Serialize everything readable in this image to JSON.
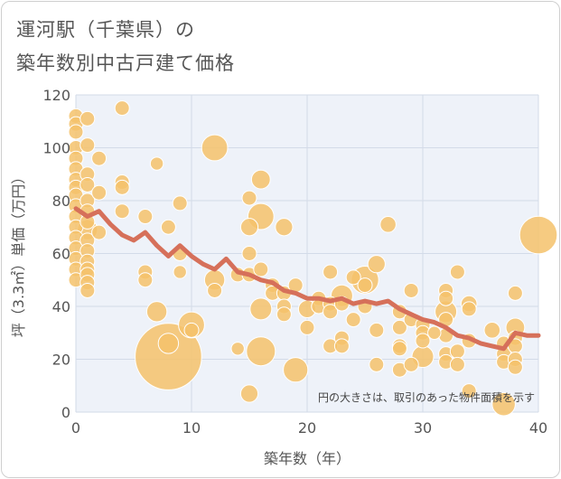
{
  "title_line1": "運河駅（千葉県）の",
  "title_line2": "築年数別中古戸建て価格",
  "note": "円の大きさは、取引のあった物件面積を示す",
  "colors": {
    "bubble": "#f5c26b",
    "bubble_stroke": "#ffffff",
    "line": "#d6705a",
    "plot_bg": "#eef2f9",
    "grid": "#d3dbe8"
  },
  "chart_data": {
    "type": "scatter",
    "xlabel": "築年数（年）",
    "ylabel": "坪（3.3㎡）単価（万円）",
    "xlim": [
      0,
      40
    ],
    "ylim": [
      0,
      120
    ],
    "x_ticks": [
      0,
      10,
      20,
      30,
      40
    ],
    "y_ticks": [
      0,
      20,
      40,
      60,
      80,
      100,
      120
    ],
    "grid": true,
    "bubbles": [
      {
        "x": 0,
        "y": 112,
        "s": 1.0
      },
      {
        "x": 0,
        "y": 109,
        "s": 1.0
      },
      {
        "x": 0,
        "y": 106,
        "s": 1.0
      },
      {
        "x": 0,
        "y": 100,
        "s": 1.0
      },
      {
        "x": 0,
        "y": 96,
        "s": 1.0
      },
      {
        "x": 0,
        "y": 92,
        "s": 1.0
      },
      {
        "x": 0,
        "y": 88,
        "s": 1.0
      },
      {
        "x": 0,
        "y": 85,
        "s": 1.0
      },
      {
        "x": 0,
        "y": 82,
        "s": 1.0
      },
      {
        "x": 0,
        "y": 78,
        "s": 1.0
      },
      {
        "x": 0,
        "y": 74,
        "s": 1.0
      },
      {
        "x": 0,
        "y": 70,
        "s": 1.0
      },
      {
        "x": 0,
        "y": 66,
        "s": 1.0
      },
      {
        "x": 0,
        "y": 62,
        "s": 1.0
      },
      {
        "x": 0,
        "y": 58,
        "s": 1.0
      },
      {
        "x": 0,
        "y": 54,
        "s": 1.0
      },
      {
        "x": 0,
        "y": 50,
        "s": 1.0
      },
      {
        "x": 1,
        "y": 111,
        "s": 1.0
      },
      {
        "x": 1,
        "y": 101,
        "s": 1.0
      },
      {
        "x": 1,
        "y": 90,
        "s": 1.0
      },
      {
        "x": 1,
        "y": 86,
        "s": 1.0
      },
      {
        "x": 1,
        "y": 80,
        "s": 1.0
      },
      {
        "x": 1,
        "y": 76,
        "s": 1.0
      },
      {
        "x": 1,
        "y": 72,
        "s": 1.0
      },
      {
        "x": 1,
        "y": 69,
        "s": 1.4
      },
      {
        "x": 1,
        "y": 65,
        "s": 1.0
      },
      {
        "x": 1,
        "y": 61,
        "s": 1.0
      },
      {
        "x": 1,
        "y": 57,
        "s": 1.0
      },
      {
        "x": 1,
        "y": 54,
        "s": 1.0
      },
      {
        "x": 1,
        "y": 52,
        "s": 1.0
      },
      {
        "x": 1,
        "y": 49,
        "s": 1.0
      },
      {
        "x": 1,
        "y": 46,
        "s": 1.0
      },
      {
        "x": 2,
        "y": 96,
        "s": 1.0
      },
      {
        "x": 2,
        "y": 83,
        "s": 1.0
      },
      {
        "x": 2,
        "y": 68,
        "s": 1.0
      },
      {
        "x": 4,
        "y": 115,
        "s": 1.0
      },
      {
        "x": 4,
        "y": 87,
        "s": 1.0
      },
      {
        "x": 4,
        "y": 85,
        "s": 1.0
      },
      {
        "x": 4,
        "y": 76,
        "s": 1.0
      },
      {
        "x": 6,
        "y": 74,
        "s": 1.0
      },
      {
        "x": 6,
        "y": 53,
        "s": 1.0
      },
      {
        "x": 6,
        "y": 50,
        "s": 1.0
      },
      {
        "x": 7,
        "y": 94,
        "s": 0.9
      },
      {
        "x": 7,
        "y": 38,
        "s": 1.4
      },
      {
        "x": 8,
        "y": 70,
        "s": 1.0
      },
      {
        "x": 8,
        "y": 26,
        "s": 1.4
      },
      {
        "x": 8,
        "y": 21,
        "s": 4.6
      },
      {
        "x": 9,
        "y": 79,
        "s": 1.0
      },
      {
        "x": 9,
        "y": 60,
        "s": 1.0
      },
      {
        "x": 9,
        "y": 53,
        "s": 0.9
      },
      {
        "x": 10,
        "y": 33,
        "s": 1.8
      },
      {
        "x": 10,
        "y": 31,
        "s": 1.0
      },
      {
        "x": 12,
        "y": 100,
        "s": 1.8
      },
      {
        "x": 12,
        "y": 50,
        "s": 1.4
      },
      {
        "x": 12,
        "y": 46,
        "s": 1.0
      },
      {
        "x": 14,
        "y": 52,
        "s": 1.0
      },
      {
        "x": 14,
        "y": 24,
        "s": 0.9
      },
      {
        "x": 15,
        "y": 81,
        "s": 1.0
      },
      {
        "x": 15,
        "y": 70,
        "s": 1.2
      },
      {
        "x": 15,
        "y": 60,
        "s": 1.0
      },
      {
        "x": 15,
        "y": 52,
        "s": 1.0
      },
      {
        "x": 15,
        "y": 7,
        "s": 1.2
      },
      {
        "x": 16,
        "y": 88,
        "s": 1.3
      },
      {
        "x": 16,
        "y": 74,
        "s": 1.8
      },
      {
        "x": 16,
        "y": 54,
        "s": 1.0
      },
      {
        "x": 16,
        "y": 39,
        "s": 1.5
      },
      {
        "x": 16,
        "y": 23,
        "s": 2.0
      },
      {
        "x": 17,
        "y": 48,
        "s": 1.0
      },
      {
        "x": 17,
        "y": 45,
        "s": 1.0
      },
      {
        "x": 18,
        "y": 70,
        "s": 1.2
      },
      {
        "x": 18,
        "y": 45,
        "s": 1.0
      },
      {
        "x": 18,
        "y": 40,
        "s": 1.0
      },
      {
        "x": 18,
        "y": 37,
        "s": 1.0
      },
      {
        "x": 19,
        "y": 48,
        "s": 1.0
      },
      {
        "x": 19,
        "y": 16,
        "s": 1.7
      },
      {
        "x": 20,
        "y": 39,
        "s": 1.2
      },
      {
        "x": 20,
        "y": 32,
        "s": 1.0
      },
      {
        "x": 21,
        "y": 43,
        "s": 1.0
      },
      {
        "x": 21,
        "y": 40,
        "s": 1.0
      },
      {
        "x": 22,
        "y": 53,
        "s": 1.0
      },
      {
        "x": 22,
        "y": 41,
        "s": 1.0
      },
      {
        "x": 22,
        "y": 38,
        "s": 1.0
      },
      {
        "x": 22,
        "y": 25,
        "s": 1.0
      },
      {
        "x": 23,
        "y": 44,
        "s": 1.5
      },
      {
        "x": 23,
        "y": 41,
        "s": 1.0
      },
      {
        "x": 23,
        "y": 28,
        "s": 1.0
      },
      {
        "x": 23,
        "y": 25,
        "s": 1.0
      },
      {
        "x": 24,
        "y": 51,
        "s": 1.0
      },
      {
        "x": 24,
        "y": 35,
        "s": 1.0
      },
      {
        "x": 25,
        "y": 50,
        "s": 1.9
      },
      {
        "x": 25,
        "y": 48,
        "s": 1.0
      },
      {
        "x": 25,
        "y": 40,
        "s": 1.0
      },
      {
        "x": 26,
        "y": 56,
        "s": 1.2
      },
      {
        "x": 26,
        "y": 31,
        "s": 1.0
      },
      {
        "x": 26,
        "y": 18,
        "s": 1.0
      },
      {
        "x": 27,
        "y": 71,
        "s": 1.1
      },
      {
        "x": 28,
        "y": 38,
        "s": 1.0
      },
      {
        "x": 28,
        "y": 32,
        "s": 1.0
      },
      {
        "x": 28,
        "y": 25,
        "s": 1.0
      },
      {
        "x": 28,
        "y": 24,
        "s": 1.0
      },
      {
        "x": 28,
        "y": 16,
        "s": 1.0
      },
      {
        "x": 29,
        "y": 46,
        "s": 1.0
      },
      {
        "x": 29,
        "y": 35,
        "s": 1.0
      },
      {
        "x": 29,
        "y": 18,
        "s": 1.0
      },
      {
        "x": 30,
        "y": 33,
        "s": 1.0
      },
      {
        "x": 30,
        "y": 30,
        "s": 1.0
      },
      {
        "x": 30,
        "y": 27,
        "s": 1.0
      },
      {
        "x": 30,
        "y": 21,
        "s": 1.5
      },
      {
        "x": 31,
        "y": 30,
        "s": 0.9
      },
      {
        "x": 32,
        "y": 46,
        "s": 1.0
      },
      {
        "x": 32,
        "y": 43,
        "s": 1.0
      },
      {
        "x": 32,
        "y": 38,
        "s": 1.5
      },
      {
        "x": 32,
        "y": 35,
        "s": 1.0
      },
      {
        "x": 32,
        "y": 29,
        "s": 1.0
      },
      {
        "x": 32,
        "y": 22,
        "s": 1.0
      },
      {
        "x": 32,
        "y": 19,
        "s": 1.0
      },
      {
        "x": 33,
        "y": 53,
        "s": 1.0
      },
      {
        "x": 33,
        "y": 23,
        "s": 1.0
      },
      {
        "x": 33,
        "y": 18,
        "s": 1.0
      },
      {
        "x": 34,
        "y": 41,
        "s": 1.1
      },
      {
        "x": 34,
        "y": 39,
        "s": 1.0
      },
      {
        "x": 34,
        "y": 27,
        "s": 1.0
      },
      {
        "x": 34,
        "y": 8,
        "s": 1.0
      },
      {
        "x": 36,
        "y": 31,
        "s": 1.1
      },
      {
        "x": 37,
        "y": 26,
        "s": 1.0
      },
      {
        "x": 37,
        "y": 22,
        "s": 1.0
      },
      {
        "x": 37,
        "y": 19,
        "s": 1.0
      },
      {
        "x": 37,
        "y": 3,
        "s": 1.6
      },
      {
        "x": 38,
        "y": 45,
        "s": 1.0
      },
      {
        "x": 38,
        "y": 32,
        "s": 1.3
      },
      {
        "x": 38,
        "y": 28,
        "s": 1.0
      },
      {
        "x": 38,
        "y": 25,
        "s": 1.0
      },
      {
        "x": 38,
        "y": 20,
        "s": 1.0
      },
      {
        "x": 38,
        "y": 17,
        "s": 1.0
      },
      {
        "x": 40,
        "y": 67,
        "s": 2.6
      }
    ],
    "trend": {
      "x": [
        0,
        1,
        2,
        3,
        4,
        5,
        6,
        7,
        8,
        9,
        10,
        11,
        12,
        13,
        14,
        15,
        16,
        17,
        18,
        19,
        20,
        21,
        22,
        23,
        24,
        25,
        26,
        27,
        28,
        29,
        30,
        31,
        32,
        33,
        34,
        35,
        36,
        37,
        38,
        39,
        40
      ],
      "y": [
        77,
        74,
        76,
        71,
        67,
        65,
        68,
        63,
        59,
        63,
        59,
        56,
        54,
        58,
        53,
        52,
        50,
        49,
        46,
        45,
        43,
        43,
        42,
        43,
        41,
        42,
        41,
        42,
        39,
        37,
        35,
        34,
        32,
        29,
        28,
        26,
        25,
        24,
        30,
        29,
        29
      ]
    }
  }
}
